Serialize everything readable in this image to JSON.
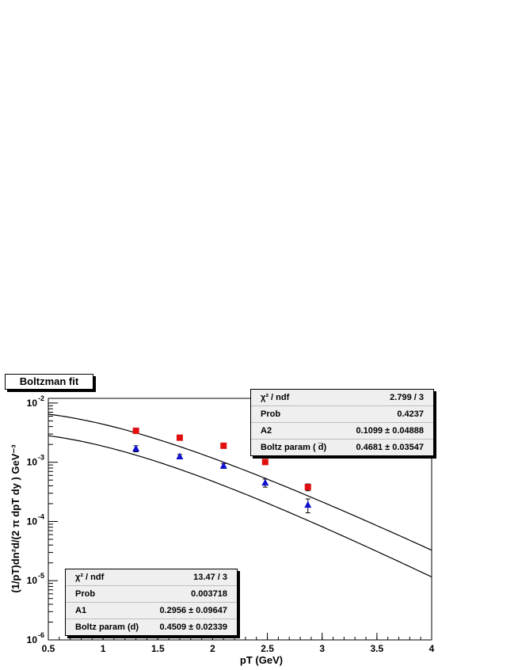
{
  "title": "Boltzman fit",
  "colors": {
    "dbar": "#e01010",
    "d": "#1010d0",
    "curve": "#000000"
  },
  "stats_dbar": [
    {
      "label": "χ² / ndf",
      "value": "2.799 / 3"
    },
    {
      "label": "Prob",
      "value": "0.4237"
    },
    {
      "label": "A2",
      "value": "0.1099 ± 0.04888"
    },
    {
      "label": "Boltz param ( d̅)",
      "value": "0.4681 ± 0.03547"
    }
  ],
  "stats_d": [
    {
      "label": "χ² / ndf",
      "value": "13.47 / 3"
    },
    {
      "label": "Prob",
      "value": "0.003718"
    },
    {
      "label": "A1",
      "value": "0.2956 ± 0.09647"
    },
    {
      "label": "Boltz param (d)",
      "value": "0.4509 ± 0.02339"
    }
  ],
  "chart_data": {
    "type": "scatter",
    "xlabel": "pT (GeV)",
    "ylabel": "(1/pT)dn²d/(2 π dpT dy ) GeV⁻³",
    "xlim": [
      0.5,
      4
    ],
    "ylim": [
      1e-06,
      0.012
    ],
    "ylog": true,
    "x_ticks": [
      "0.5",
      "1",
      "1.5",
      "2",
      "2.5",
      "3",
      "3.5",
      "4"
    ],
    "y_ticks": [
      {
        "base": "10",
        "exp": "-6"
      },
      {
        "base": "10",
        "exp": "-5"
      },
      {
        "base": "10",
        "exp": "-4"
      },
      {
        "base": "10",
        "exp": "-3"
      },
      {
        "base": "10",
        "exp": "-2"
      }
    ],
    "series": [
      {
        "marker": "square",
        "x": [
          1.3,
          1.7,
          2.1,
          2.48,
          2.87
        ],
        "y": [
          0.0034,
          0.0026,
          0.0019,
          0.00101,
          0.00038
        ],
        "err": [
          0.0003,
          0.0001,
          0.0001,
          7e-05,
          5e-05
        ],
        "fit": {
          "A": 0.1099,
          "T": 0.4681
        }
      },
      {
        "marker": "triangle",
        "x": [
          1.3,
          1.7,
          2.1,
          2.48,
          2.87
        ],
        "y": [
          0.0017,
          0.00125,
          0.00087,
          0.00045,
          0.00019
        ],
        "err": [
          0.0002,
          0.0001,
          8e-05,
          7e-05,
          5e-05
        ],
        "fit": {
          "A": 0.2956,
          "T": 0.4509
        }
      }
    ]
  }
}
